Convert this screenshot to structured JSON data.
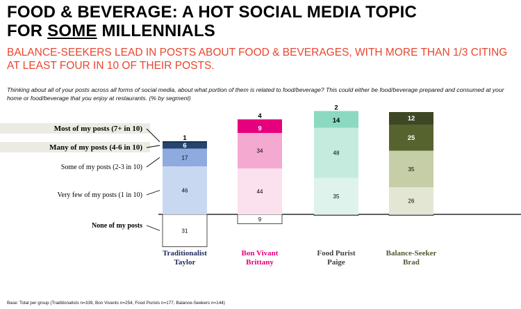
{
  "title_parts": {
    "pre": "FOOD & BEVERAGE: A HOT SOCIAL MEDIA TOPIC",
    "line2_pre": "FOR ",
    "emph": "SOME",
    "post": " MILLENNIALS"
  },
  "subtitle": "BALANCE-SEEKERS LEAD IN POSTS ABOUT FOOD & BEVERAGES, WITH MORE THAN 1/3 CITING AT LEAST FOUR IN 10 OF THEIR POSTS.",
  "question": "Thinking about all of your posts across all forms of social media, about what portion of them is related to food/beverage? This could either be food/beverage prepared and consumed at your home or food/beverage that you enjoy at restaurants.  (% by segment)",
  "base_note": "Base: Total per group (Traditionalists n=339, Bon Vivants n=254, Food Purists n=177, Balance-Seekers n=144)",
  "chart_data": {
    "type": "bar",
    "stacked": true,
    "baseline_split": "None of my posts plotted below the baseline",
    "categories": [
      "Traditionalist Taylor",
      "Bon Vivant Brittany",
      "Food Purist Paige",
      "Balance-Seeker Brad"
    ],
    "category_lines": [
      [
        "Traditionalist",
        "Taylor"
      ],
      [
        "Bon Vivant",
        "Brittany"
      ],
      [
        "Food Purist",
        "Paige"
      ],
      [
        "Balance-Seeker",
        "Brad"
      ]
    ],
    "category_colors": [
      "#1f2a5c",
      "#e6007e",
      "#404040",
      "#4e5b31"
    ],
    "series": [
      {
        "name": "None of my posts",
        "values": [
          31,
          9,
          1,
          1
        ],
        "labels": [
          "31",
          "9",
          "",
          ""
        ]
      },
      {
        "name": "Very few of my posts (1 in 10)",
        "values": [
          46,
          44,
          35,
          26
        ]
      },
      {
        "name": "Some of my posts (2-3 in 10)",
        "values": [
          17,
          34,
          48,
          35
        ]
      },
      {
        "name": "Many of my posts (4-6 in 10)",
        "values": [
          6,
          9,
          14,
          25
        ]
      },
      {
        "name": "Most of my posts (7+ in 10)",
        "values": [
          1,
          4,
          2,
          12
        ]
      }
    ],
    "colors": [
      [
        "#ffffff",
        "#c9d8f1",
        "#8eaadf",
        "#25456e",
        "#0e2240"
      ],
      [
        "#ffffff",
        "#fbe0ee",
        "#f4a9d1",
        "#e6007e",
        "#e6007e"
      ],
      [
        "#ffffff",
        "#ddf3ec",
        "#c5ebdf",
        "#8cd9c2",
        "#8cd9c2"
      ],
      [
        "#ffffff",
        "#e3e6d3",
        "#c5cea7",
        "#56632e",
        "#3d4723"
      ]
    ],
    "legend_order": [
      "Most of my posts (7+ in 10)",
      "Many of my posts (4-6 in 10)",
      "Some of my posts (2-3 in 10)",
      "Very few of my posts (1 in 10)",
      "None of my posts"
    ]
  }
}
